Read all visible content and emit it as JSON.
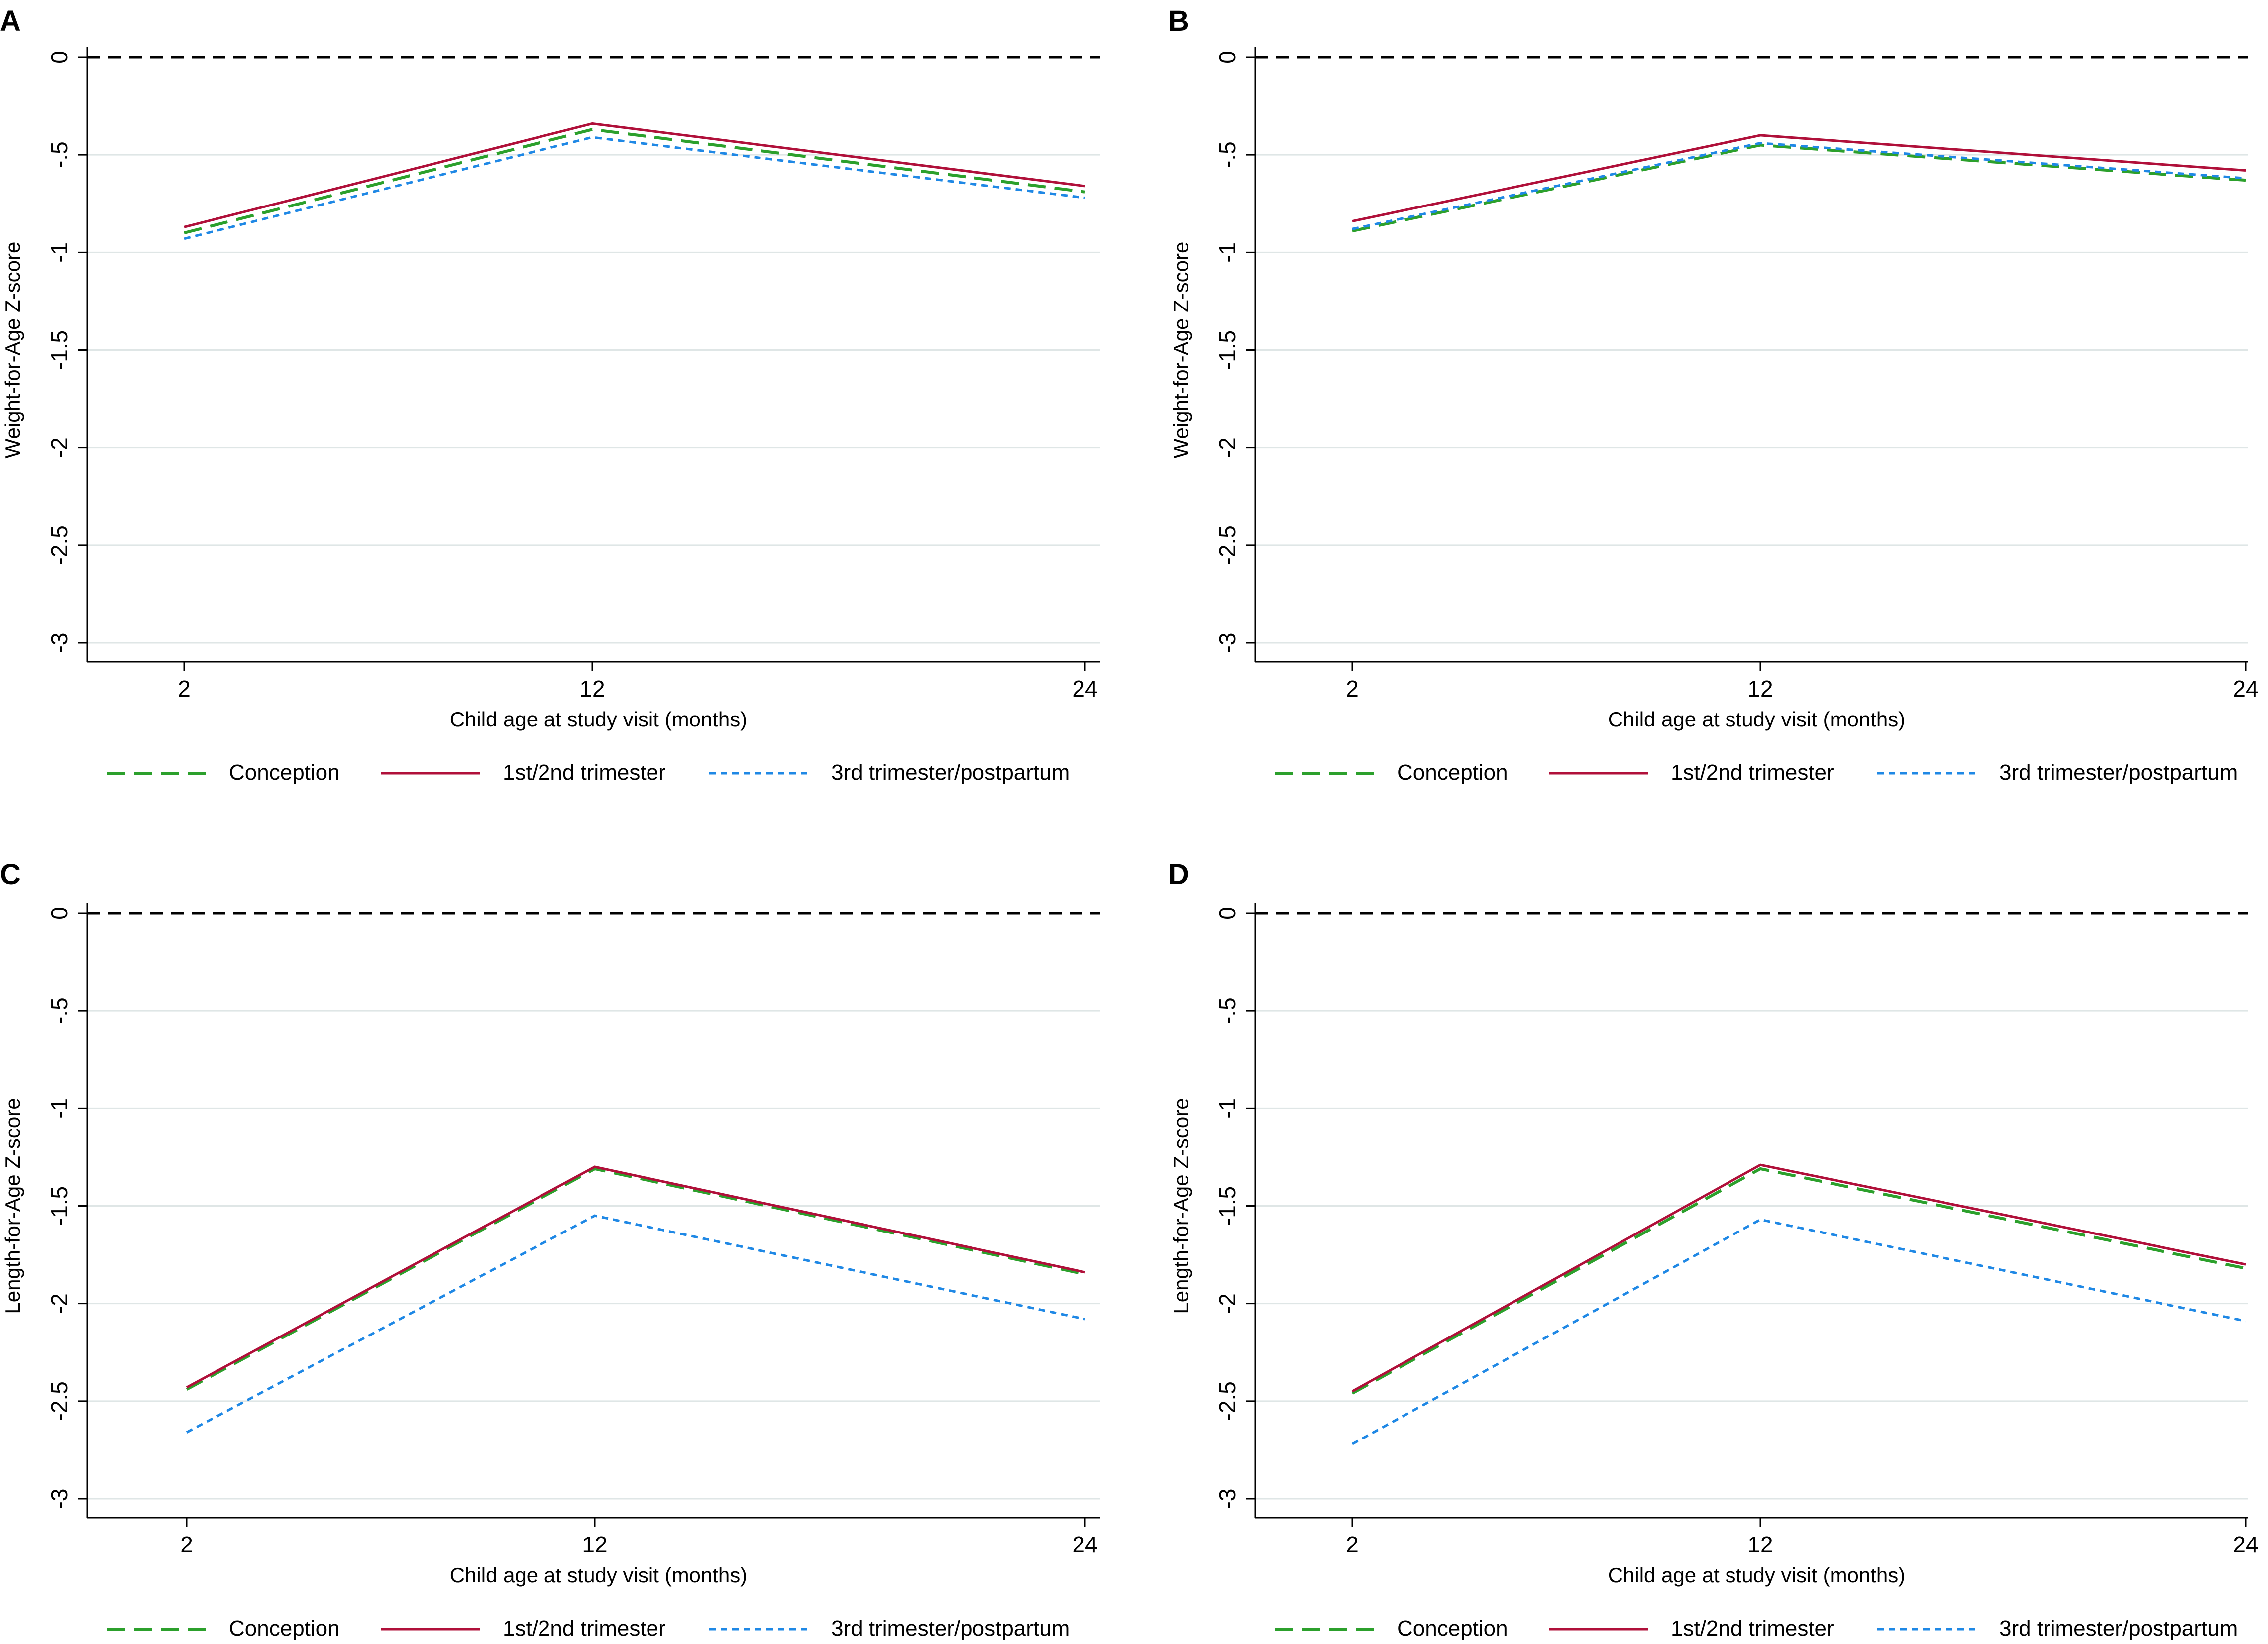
{
  "colors": {
    "conception": "#2ca02c",
    "first_second": "#b0103a",
    "third_post": "#1f88e5",
    "reference": "#000000",
    "grid": "#dfe6e6"
  },
  "chart_data": [
    {
      "panel": "A",
      "type": "line",
      "xlabel": "Child age at study visit (months)",
      "ylabel": "Weight-for-Age Z-score",
      "categories": [
        "2",
        "12",
        "24"
      ],
      "ylim": [
        -3,
        0
      ],
      "yticks": [
        "0",
        "-.5",
        "-1",
        "-1.5",
        "-2",
        "-2.5",
        "-3"
      ],
      "reference_line": 0,
      "legend": [
        "Conception",
        "1st/2nd trimester",
        "3rd trimester/postpartum"
      ],
      "series": [
        {
          "name": "Conception",
          "values": [
            -0.9,
            -0.37,
            -0.69
          ]
        },
        {
          "name": "1st/2nd trimester",
          "values": [
            -0.87,
            -0.34,
            -0.66
          ]
        },
        {
          "name": "3rd trimester/postpartum",
          "values": [
            -0.93,
            -0.41,
            -0.72
          ]
        }
      ]
    },
    {
      "panel": "B",
      "type": "line",
      "xlabel": "Child age at study visit (months)",
      "ylabel": "Weight-for-Age Z-score",
      "categories": [
        "2",
        "12",
        "24"
      ],
      "ylim": [
        -3,
        0
      ],
      "yticks": [
        "0",
        "-.5",
        "-1",
        "-1.5",
        "-2",
        "-2.5",
        "-3"
      ],
      "reference_line": 0,
      "legend": [
        "Conception",
        "1st/2nd trimester",
        "3rd trimester/postpartum"
      ],
      "series": [
        {
          "name": "Conception",
          "values": [
            -0.89,
            -0.45,
            -0.63
          ]
        },
        {
          "name": "1st/2nd trimester",
          "values": [
            -0.84,
            -0.4,
            -0.58
          ]
        },
        {
          "name": "3rd trimester/postpartum",
          "values": [
            -0.88,
            -0.44,
            -0.62
          ]
        }
      ]
    },
    {
      "panel": "C",
      "type": "line",
      "xlabel": "Child age at study visit (months)",
      "ylabel": "Length-for-Age Z-score",
      "categories": [
        "2",
        "12",
        "24"
      ],
      "ylim": [
        -3,
        0
      ],
      "yticks": [
        "0",
        "-.5",
        "-1",
        "-1.5",
        "-2",
        "-2.5",
        "-3"
      ],
      "reference_line": 0,
      "legend": [
        "Conception",
        "1st/2nd trimester",
        "3rd trimester/postpartum"
      ],
      "series": [
        {
          "name": "Conception",
          "values": [
            -2.44,
            -1.31,
            -1.85
          ]
        },
        {
          "name": "1st/2nd trimester",
          "values": [
            -2.43,
            -1.3,
            -1.84
          ]
        },
        {
          "name": "3rd trimester/postpartum",
          "values": [
            -2.66,
            -1.55,
            -2.08
          ]
        }
      ]
    },
    {
      "panel": "D",
      "type": "line",
      "xlabel": "Child age at study visit (months)",
      "ylabel": "Length-for-Age Z-score",
      "categories": [
        "2",
        "12",
        "24"
      ],
      "ylim": [
        -3,
        0
      ],
      "yticks": [
        "0",
        "-.5",
        "-1",
        "-1.5",
        "-2",
        "-2.5",
        "-3"
      ],
      "reference_line": 0,
      "legend": [
        "Conception",
        "1st/2nd trimester",
        "3rd trimester/postpartum"
      ],
      "series": [
        {
          "name": "Conception",
          "values": [
            -2.46,
            -1.31,
            -1.82
          ]
        },
        {
          "name": "1st/2nd trimester",
          "values": [
            -2.45,
            -1.29,
            -1.8
          ]
        },
        {
          "name": "3rd trimester/postpartum",
          "values": [
            -2.72,
            -1.57,
            -2.09
          ]
        }
      ]
    }
  ]
}
